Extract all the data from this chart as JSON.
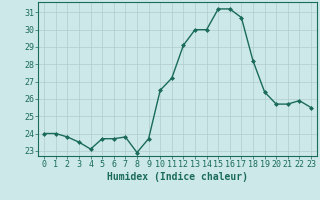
{
  "x": [
    0,
    1,
    2,
    3,
    4,
    5,
    6,
    7,
    8,
    9,
    10,
    11,
    12,
    13,
    14,
    15,
    16,
    17,
    18,
    19,
    20,
    21,
    22,
    23
  ],
  "y": [
    24.0,
    24.0,
    23.8,
    23.5,
    23.1,
    23.7,
    23.7,
    23.8,
    22.9,
    23.7,
    26.5,
    27.2,
    29.1,
    30.0,
    30.0,
    31.2,
    31.2,
    30.7,
    28.2,
    26.4,
    25.7,
    25.7,
    25.9,
    25.5
  ],
  "line_color": "#1a6b5a",
  "marker": "D",
  "marker_size": 2.0,
  "bg_color": "#cce8e8",
  "grid_color": "#b0cccc",
  "xlabel": "Humidex (Indice chaleur)",
  "ylim_min": 22.7,
  "ylim_max": 31.6,
  "xlim_min": -0.5,
  "xlim_max": 23.5,
  "yticks": [
    23,
    24,
    25,
    26,
    27,
    28,
    29,
    30,
    31
  ],
  "xticks": [
    0,
    1,
    2,
    3,
    4,
    5,
    6,
    7,
    8,
    9,
    10,
    11,
    12,
    13,
    14,
    15,
    16,
    17,
    18,
    19,
    20,
    21,
    22,
    23
  ],
  "tick_color": "#1a6b5a",
  "label_color": "#1a6b5a",
  "spine_color": "#1a6b5a",
  "tick_fontsize": 6.0,
  "xlabel_fontsize": 7.0,
  "linewidth": 1.0
}
